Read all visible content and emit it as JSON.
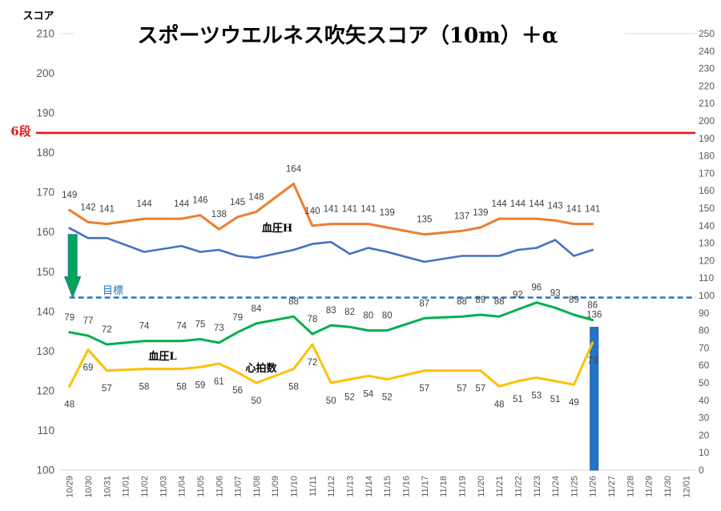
{
  "chart_data": {
    "type": "line",
    "title": "スポーツウエルネス吹矢スコア（10m）＋α",
    "grid": false,
    "categories": [
      "10/29",
      "10/30",
      "10/31",
      "11/01",
      "11/02",
      "11/03",
      "11/04",
      "11/05",
      "11/06",
      "11/07",
      "11/08",
      "11/09",
      "11/10",
      "11/11",
      "11/12",
      "11/13",
      "11/14",
      "11/15",
      "11/16",
      "11/17",
      "11/18",
      "11/19",
      "11/20",
      "11/21",
      "11/22",
      "11/23",
      "11/24",
      "11/25",
      "11/26",
      "11/27",
      "11/28",
      "11/29",
      "11/30",
      "12/01"
    ],
    "y_left": {
      "label": "スコア",
      "range": [
        100,
        210
      ],
      "ticks": [
        100,
        110,
        120,
        130,
        140,
        150,
        160,
        170,
        180,
        190,
        200,
        210
      ]
    },
    "y_right": {
      "range": [
        0,
        250
      ],
      "ticks": [
        0,
        10,
        20,
        30,
        40,
        50,
        60,
        70,
        80,
        90,
        100,
        110,
        120,
        130,
        140,
        150,
        160,
        170,
        180,
        190,
        200,
        210,
        220,
        230,
        240,
        250
      ]
    },
    "series": [
      {
        "color": "#4472C4",
        "secondary_axis": false,
        "values": [
          161,
          158.5,
          158.5,
          null,
          155,
          null,
          156.5,
          155,
          155.5,
          154,
          153.5,
          null,
          155.5,
          157,
          157.5,
          154.5,
          156,
          155,
          null,
          152.5,
          null,
          154,
          154,
          154,
          155.5,
          156,
          158,
          154,
          155.5,
          null,
          null,
          null,
          null,
          null
        ]
      },
      {
        "name": "血圧H",
        "color": "#ED7D31",
        "secondary_axis": true,
        "values": [
          149,
          142,
          141,
          null,
          144,
          null,
          144,
          146,
          138,
          145,
          148,
          null,
          164,
          140,
          141,
          141,
          141,
          139,
          null,
          135,
          null,
          137,
          139,
          144,
          144,
          144,
          143,
          141,
          141,
          null,
          null,
          null,
          null,
          null
        ]
      },
      {
        "name": "血圧L",
        "color": "#00B050",
        "secondary_axis": true,
        "values": [
          79,
          77,
          72,
          null,
          74,
          null,
          74,
          75,
          73,
          79,
          84,
          null,
          88,
          78,
          83,
          82,
          80,
          80,
          null,
          87,
          null,
          88,
          89,
          88,
          92,
          96,
          93,
          89,
          86,
          null,
          null,
          null,
          null,
          null
        ]
      },
      {
        "name": "心拍数",
        "color": "#FFC000",
        "secondary_axis": true,
        "values": [
          48,
          69,
          57,
          null,
          58,
          null,
          58,
          59,
          61,
          56,
          50,
          null,
          58,
          72,
          50,
          52,
          54,
          52,
          null,
          57,
          null,
          57,
          57,
          48,
          51,
          53,
          51,
          49,
          73,
          null,
          null,
          null,
          null,
          null
        ]
      }
    ],
    "bar_series": [
      {
        "color": "#2474C8",
        "secondary_axis": false,
        "values": [
          null,
          null,
          null,
          null,
          null,
          null,
          null,
          null,
          null,
          null,
          null,
          null,
          null,
          null,
          null,
          null,
          null,
          null,
          null,
          null,
          null,
          null,
          null,
          null,
          null,
          null,
          null,
          null,
          136,
          null,
          null,
          null,
          null,
          null
        ]
      }
    ],
    "reference_lines": [
      {
        "name": "6段",
        "value": 185,
        "color": "#E31A1A"
      },
      {
        "name": "目標",
        "value": 143.5,
        "color": "#2E75B6"
      }
    ]
  }
}
